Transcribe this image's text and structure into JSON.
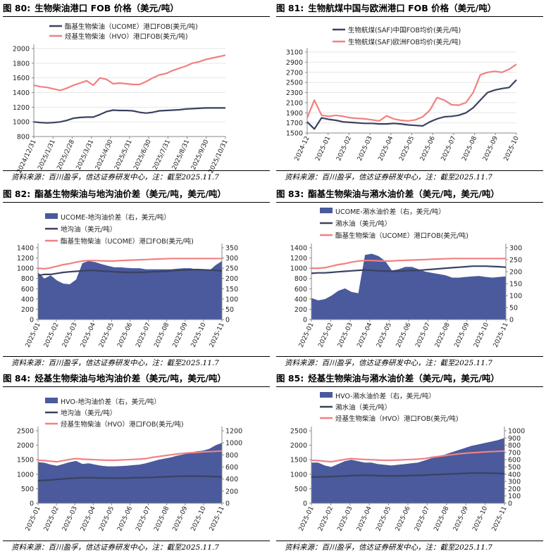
{
  "source_note": "资料来源：百川盈孚，信达证券研发中心，注：截至2025.11.7",
  "charts": [
    {
      "fig": "图 80:",
      "title": "生物柴油港口 FOB 价格（美元/吨）",
      "type": "line",
      "legend": [
        "酯基生物柴油（UCOME）港口FOB(美元/吨)",
        "烃基生物柴油（HVO）港口FOB(美元/吨)"
      ],
      "colors": [
        "#3a4260",
        "#f28080"
      ],
      "y_ticks": [
        "2000",
        "1800",
        "1600",
        "1400",
        "1200",
        "1000",
        "800"
      ],
      "ylim": [
        800,
        2000
      ],
      "x_ticks": [
        "2024/12/31",
        "2025/1/31",
        "2025/2/28",
        "2025/3/31",
        "2025/4/30",
        "2025/5/31",
        "2025/6/30",
        "2025/7/31",
        "2025/8/31",
        "2025/9/30",
        "2025/10/31"
      ],
      "series": [
        {
          "name": "UCOME",
          "values": [
            1000,
            990,
            985,
            990,
            1000,
            1020,
            1050,
            1060,
            1065,
            1065,
            1100,
            1140,
            1160,
            1155,
            1155,
            1150,
            1130,
            1120,
            1130,
            1150,
            1155,
            1160,
            1165,
            1175,
            1180,
            1185,
            1190,
            1190,
            1190,
            1190
          ]
        },
        {
          "name": "HVO",
          "values": [
            1500,
            1480,
            1470,
            1450,
            1430,
            1460,
            1500,
            1530,
            1560,
            1500,
            1600,
            1580,
            1520,
            1530,
            1520,
            1510,
            1510,
            1550,
            1600,
            1640,
            1660,
            1700,
            1730,
            1760,
            1800,
            1820,
            1850,
            1870,
            1890,
            1910
          ]
        }
      ]
    },
    {
      "fig": "图 81:",
      "title": "生物航煤中国与欧洲港口 FOB 价格（美元/吨）",
      "type": "line",
      "legend": [
        "生物航煤(SAF)中国FOB均价(美元/吨)",
        "生物航煤(SAF)欧洲FOB均价(美元/吨)"
      ],
      "colors": [
        "#3a4260",
        "#f28080"
      ],
      "y_ticks": [
        "3100",
        "2900",
        "2700",
        "2500",
        "2300",
        "2100",
        "1900",
        "1700",
        "1500"
      ],
      "ylim": [
        1500,
        3100
      ],
      "x_ticks": [
        "2024-12",
        "2025-01",
        "2025-02",
        "2025-03",
        "2025-04",
        "2025-05",
        "2025-06",
        "2025-07",
        "2025-08",
        "2025-09",
        "2025-10"
      ],
      "series": [
        {
          "name": "China",
          "values": [
            1720,
            1580,
            1800,
            1770,
            1750,
            1720,
            1710,
            1700,
            1690,
            1690,
            1680,
            1680,
            1690,
            1680,
            1660,
            1650,
            1640,
            1720,
            1780,
            1820,
            1830,
            1850,
            1900,
            2000,
            2150,
            2300,
            2350,
            2380,
            2400,
            2550
          ]
        },
        {
          "name": "Europe",
          "values": [
            1800,
            2150,
            1850,
            1830,
            1850,
            1830,
            1800,
            1790,
            1780,
            1760,
            1740,
            1840,
            1780,
            1750,
            1740,
            1760,
            1820,
            1950,
            2200,
            2150,
            2060,
            2050,
            2100,
            2300,
            2650,
            2700,
            2720,
            2700,
            2760,
            2860
          ]
        }
      ]
    },
    {
      "fig": "图 82:",
      "title": "酯基生物柴油与地沟油价差（美元/吨，美元/吨）",
      "type": "area_line",
      "legend": [
        "UCOME-地沟油价差（右，美元/吨）",
        "地沟油（美元/吨）",
        "酯基生物柴油（UCOME）港口FOB(美元/吨)"
      ],
      "colors": [
        "#4a5a9c",
        "#3a4260",
        "#f28080"
      ],
      "y_ticks": [
        "1400",
        "1200",
        "1000",
        "800",
        "600",
        "400",
        "200",
        "0"
      ],
      "ylim": [
        0,
        1400
      ],
      "y2_ticks": [
        "350",
        "300",
        "250",
        "200",
        "150",
        "100",
        "50",
        "0"
      ],
      "y2lim": [
        0,
        350
      ],
      "x_ticks": [
        "2025-01",
        "2025-02",
        "2025-03",
        "2025-04",
        "2025-05",
        "2025-06",
        "2025-07",
        "2025-08",
        "2025-09",
        "2025-10",
        "2025-11"
      ],
      "area": [
        230,
        200,
        215,
        190,
        175,
        172,
        195,
        275,
        285,
        280,
        270,
        262,
        255,
        255,
        252,
        250,
        250,
        245,
        245,
        245,
        245,
        245,
        248,
        250,
        250,
        245,
        240,
        238,
        265,
        285
      ],
      "series": [
        {
          "name": "地沟油",
          "values": [
            860,
            880,
            880,
            900,
            920,
            930,
            940,
            950,
            960,
            955,
            945,
            940,
            930,
            925,
            920,
            920,
            920,
            925,
            930,
            935,
            940,
            950,
            960,
            965,
            970,
            975,
            970,
            965,
            960,
            950
          ]
        },
        {
          "name": "UCOME",
          "values": [
            1000,
            990,
            1010,
            1040,
            1070,
            1090,
            1120,
            1140,
            1150,
            1150,
            1145,
            1140,
            1140,
            1150,
            1155,
            1160,
            1165,
            1170,
            1175,
            1180,
            1185,
            1190,
            1190,
            1190,
            1190,
            1190,
            1190,
            1190,
            1190,
            1190
          ]
        }
      ]
    },
    {
      "fig": "图 83:",
      "title": "酯基生物柴油与潲水油价差（美元/吨，美元/吨）",
      "type": "area_line",
      "legend": [
        "UCOME-潲水油价差（右，美元/吨）",
        "潲水油（美元/吨）",
        "酯基生物柴油（UCOME）港口FOB(美元/吨)"
      ],
      "colors": [
        "#4a5a9c",
        "#3a4260",
        "#f28080"
      ],
      "y_ticks": [
        "1400",
        "1200",
        "1000",
        "800",
        "600",
        "400",
        "200",
        "0"
      ],
      "ylim": [
        0,
        1400
      ],
      "y2_ticks": [
        "300",
        "250",
        "200",
        "150",
        "100",
        "50",
        "0"
      ],
      "y2lim": [
        0,
        300
      ],
      "x_ticks": [
        "2025-01",
        "2025-02",
        "2025-03",
        "2025-04",
        "2025-05",
        "2025-06",
        "2025-07",
        "2025-08",
        "2025-09",
        "2025-10",
        "2025-11"
      ],
      "area": [
        90,
        80,
        85,
        100,
        120,
        130,
        115,
        110,
        270,
        275,
        265,
        245,
        205,
        210,
        220,
        220,
        210,
        200,
        195,
        190,
        185,
        175,
        175,
        178,
        180,
        182,
        178,
        175,
        178,
        180
      ],
      "series": [
        {
          "name": "潲水油",
          "values": [
            900,
            910,
            910,
            920,
            930,
            940,
            950,
            960,
            965,
            960,
            950,
            945,
            940,
            945,
            950,
            955,
            960,
            970,
            980,
            990,
            1000,
            1010,
            1020,
            1030,
            1040,
            1040,
            1040,
            1035,
            1030,
            1020
          ]
        },
        {
          "name": "UCOME",
          "values": [
            1000,
            1000,
            1010,
            1040,
            1070,
            1090,
            1120,
            1140,
            1150,
            1150,
            1145,
            1140,
            1140,
            1150,
            1155,
            1160,
            1165,
            1170,
            1175,
            1180,
            1185,
            1190,
            1190,
            1190,
            1190,
            1190,
            1190,
            1190,
            1190,
            1190
          ]
        }
      ]
    },
    {
      "fig": "图 84:",
      "title": "烃基生物柴油与地沟油价差（美元/吨，美元/吨）",
      "type": "area_line",
      "legend": [
        "HVO-地沟油价差（右，美元/吨）",
        "地沟油（美元/吨）",
        "烃基生物柴油（HVO）港口FOB(美元/吨)"
      ],
      "colors": [
        "#4a5a9c",
        "#3a4260",
        "#f28080"
      ],
      "y_ticks": [
        "2500",
        "2000",
        "1500",
        "1000",
        "500",
        "0"
      ],
      "ylim": [
        0,
        2500
      ],
      "y2_ticks": [
        "1200",
        "1000",
        "800",
        "600",
        "400",
        "200",
        "0"
      ],
      "y2lim": [
        0,
        1200
      ],
      "x_ticks": [
        "2025-01",
        "2025-02",
        "2025-03",
        "2025-04",
        "2025-05",
        "2025-06",
        "2025-07",
        "2025-08",
        "2025-09",
        "2025-10",
        "2025-11"
      ],
      "area": [
        680,
        670,
        640,
        620,
        650,
        680,
        700,
        650,
        660,
        640,
        620,
        610,
        610,
        615,
        620,
        630,
        640,
        660,
        690,
        720,
        740,
        760,
        790,
        810,
        840,
        860,
        870,
        900,
        960,
        1000
      ],
      "series": [
        {
          "name": "地沟油",
          "values": [
            780,
            790,
            800,
            820,
            840,
            860,
            870,
            875,
            880,
            875,
            870,
            868,
            865,
            865,
            870,
            875,
            880,
            885,
            890,
            900,
            910,
            920,
            930,
            930,
            935,
            935,
            930,
            925,
            920,
            900
          ]
        },
        {
          "name": "HVO",
          "values": [
            1480,
            1470,
            1450,
            1430,
            1470,
            1510,
            1540,
            1520,
            1510,
            1500,
            1490,
            1480,
            1480,
            1490,
            1500,
            1510,
            1520,
            1540,
            1580,
            1610,
            1640,
            1670,
            1700,
            1720,
            1740,
            1750,
            1770,
            1780,
            1790,
            1800
          ]
        }
      ]
    },
    {
      "fig": "图 85:",
      "title": "烃基生物柴油与潲水油价差（美元/吨，美元/吨）",
      "type": "area_line",
      "legend": [
        "HVO-潲水油价差（右，美元/吨）",
        "潲水油（美元/吨）",
        "烃基生物柴油（HVO）港口FOB(美元/吨)"
      ],
      "colors": [
        "#4a5a9c",
        "#3a4260",
        "#f28080"
      ],
      "y_ticks": [
        "2500",
        "2000",
        "1500",
        "1000",
        "500",
        "0"
      ],
      "ylim": [
        0,
        2500
      ],
      "y2_ticks": [
        "1000",
        "900",
        "800",
        "700",
        "600",
        "500",
        "400",
        "300",
        "200",
        "100",
        "0"
      ],
      "y2lim": [
        0,
        1000
      ],
      "x_ticks": [
        "2025-01",
        "2025-02",
        "2025-03",
        "2025-04",
        "2025-05",
        "2025-06",
        "2025-07",
        "2025-08",
        "2025-09",
        "2025-10",
        "2025-11"
      ],
      "area": [
        560,
        560,
        520,
        500,
        540,
        580,
        600,
        580,
        560,
        560,
        540,
        530,
        520,
        530,
        540,
        550,
        560,
        590,
        620,
        650,
        670,
        700,
        730,
        760,
        790,
        810,
        830,
        850,
        870,
        900
      ],
      "series": [
        {
          "name": "潲水油",
          "values": [
            900,
            910,
            910,
            920,
            930,
            940,
            950,
            960,
            965,
            960,
            950,
            945,
            940,
            945,
            950,
            955,
            960,
            970,
            980,
            990,
            1000,
            1010,
            1020,
            1030,
            1040,
            1040,
            1040,
            1035,
            1030,
            1020
          ]
        },
        {
          "name": "HVO",
          "values": [
            1480,
            1470,
            1450,
            1430,
            1470,
            1510,
            1540,
            1520,
            1510,
            1500,
            1490,
            1480,
            1480,
            1490,
            1500,
            1510,
            1520,
            1540,
            1580,
            1610,
            1640,
            1670,
            1700,
            1720,
            1740,
            1750,
            1770,
            1780,
            1790,
            1800
          ]
        }
      ]
    }
  ]
}
